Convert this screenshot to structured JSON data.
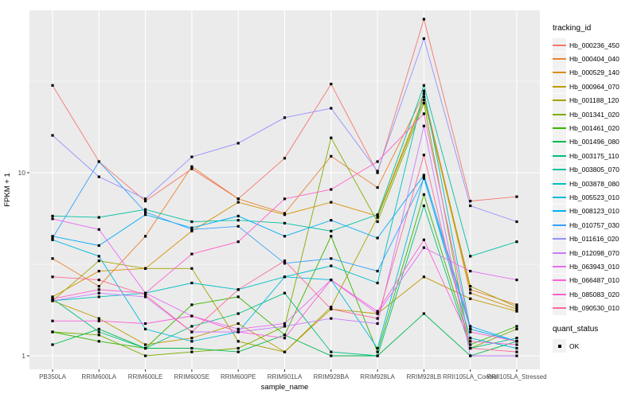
{
  "legend": {
    "tracking_title": "tracking_id",
    "quant_title": "quant_status",
    "quant_ok": "OK"
  },
  "chart_data": {
    "type": "line",
    "title": "",
    "xlabel": "sample_name",
    "ylabel": "FPKM + 1",
    "y_scale": "log10",
    "ylim": [
      0.84,
      77
    ],
    "y_major_ticks": [
      1,
      10
    ],
    "y_minor_gridlines": [
      3.162,
      31.62
    ],
    "grid": "on",
    "legend_position": "right",
    "point_marker": "black-square",
    "panel_background": "#EBEBEB",
    "gridline_color": "#FFFFFF",
    "axis_text_color": "#4D4D4D",
    "categories": [
      "PB350LA",
      "RRIM600LA",
      "RRIM600LE",
      "RRIM600SE",
      "RRIM600PE",
      "RRIM901LA",
      "RRIM928BA",
      "RRIM928LA",
      "RRIM928LB",
      "RRII105LA_Control",
      "RRII105LA_Stressed"
    ],
    "series": [
      {
        "name": "Hb_000236_450",
        "color": "#F8766D",
        "values": [
          30,
          11.5,
          7.0,
          10.5,
          7.2,
          12.0,
          30.5,
          10.0,
          69,
          7.0,
          7.4
        ]
      },
      {
        "name": "Hb_000404_040",
        "color": "#EA8331",
        "values": [
          3.4,
          2.4,
          4.5,
          10.8,
          7.2,
          6.0,
          12.3,
          8.3,
          27,
          2.3,
          1.9
        ]
      },
      {
        "name": "Hb_000529_140",
        "color": "#D89000",
        "values": [
          2.1,
          2.9,
          3.0,
          4.8,
          6.9,
          5.9,
          6.9,
          5.8,
          26,
          2.2,
          1.8
        ]
      },
      {
        "name": "Hb_000964_070",
        "color": "#C09B00",
        "values": [
          2.0,
          1.6,
          1.15,
          1.25,
          1.5,
          1.05,
          1.8,
          1.7,
          2.7,
          2.05,
          1.75
        ]
      },
      {
        "name": "Hb_001188_120",
        "color": "#A3A500",
        "values": [
          2.0,
          3.3,
          3.0,
          3.0,
          1.2,
          1.05,
          1.85,
          5.7,
          25,
          2.4,
          1.85
        ]
      },
      {
        "name": "Hb_001341_020",
        "color": "#7CAE00",
        "values": [
          1.35,
          1.3,
          1.0,
          1.05,
          1.1,
          1.45,
          15.5,
          5.4,
          24,
          1.1,
          1.4
        ]
      },
      {
        "name": "Hb_001461_020",
        "color": "#39B600",
        "values": [
          1.35,
          1.2,
          1.1,
          1.9,
          2.1,
          1.3,
          4.5,
          1.05,
          7.6,
          1.15,
          1.45
        ]
      },
      {
        "name": "Hb_001496_080",
        "color": "#00BB4E",
        "values": [
          1.15,
          1.4,
          1.1,
          1.1,
          1.05,
          1.3,
          1.0,
          1.0,
          1.7,
          1.0,
          1.2
        ]
      },
      {
        "name": "Hb_003175_110",
        "color": "#00BF7D",
        "values": [
          2.05,
          1.35,
          1.1,
          1.45,
          1.7,
          2.2,
          1.05,
          1.0,
          6.6,
          1.1,
          1.25
        ]
      },
      {
        "name": "Hb_003805_070",
        "color": "#00C1A3",
        "values": [
          5.8,
          5.7,
          6.3,
          5.4,
          5.5,
          5.3,
          4.8,
          5.9,
          30,
          3.5,
          4.2
        ]
      },
      {
        "name": "Hb_003878_080",
        "color": "#00BFC4",
        "values": [
          2.0,
          2.1,
          2.2,
          2.5,
          2.3,
          2.7,
          3.1,
          2.5,
          28,
          1.4,
          1.2
        ]
      },
      {
        "name": "Hb_005523_010",
        "color": "#00BADE",
        "values": [
          4.3,
          3.5,
          1.4,
          1.2,
          1.35,
          2.7,
          2.6,
          1.1,
          9.5,
          1.25,
          1.1
        ]
      },
      {
        "name": "Hb_008123_010",
        "color": "#00B0F6",
        "values": [
          4.5,
          4.0,
          5.9,
          5.0,
          5.8,
          4.5,
          5.5,
          4.4,
          9.7,
          1.45,
          1.2
        ]
      },
      {
        "name": "Hb_010757_030",
        "color": "#35A2FF",
        "values": [
          4.4,
          11.5,
          6.1,
          4.9,
          5.1,
          3.2,
          3.4,
          2.9,
          9.3,
          1.4,
          1.2
        ]
      },
      {
        "name": "Hb_011616_020",
        "color": "#9590FF",
        "values": [
          16,
          9.5,
          7.2,
          12.2,
          14.5,
          20,
          22.5,
          10.2,
          54,
          6.6,
          5.4
        ]
      },
      {
        "name": "Hb_012098_070",
        "color": "#C77CFF",
        "values": [
          2.0,
          2.2,
          2.1,
          1.35,
          1.35,
          1.45,
          1.6,
          1.5,
          18,
          1.0,
          1.0
        ]
      },
      {
        "name": "Hb_063943_010",
        "color": "#E76BF3",
        "values": [
          5.6,
          4.9,
          2.2,
          1.65,
          1.4,
          1.5,
          2.6,
          1.7,
          3.9,
          2.9,
          2.6
        ]
      },
      {
        "name": "Hb_066487_010",
        "color": "#FA62DB",
        "values": [
          1.55,
          1.55,
          1.5,
          1.65,
          1.35,
          1.25,
          2.6,
          1.75,
          4.3,
          1.2,
          1.15
        ]
      },
      {
        "name": "Hb_085083_020",
        "color": "#FF61CC",
        "values": [
          2.05,
          2.3,
          2.2,
          3.6,
          4.2,
          7.2,
          8.1,
          11.5,
          21,
          1.35,
          1.2
        ]
      },
      {
        "name": "Hb_090530_010",
        "color": "#FF6A98",
        "values": [
          2.7,
          2.6,
          2.15,
          1.35,
          2.3,
          3.3,
          1.8,
          1.6,
          12.5,
          1.1,
          1.05
        ]
      }
    ],
    "quant_status_series": [
      {
        "label": "OK",
        "marker": "black-square"
      }
    ]
  }
}
